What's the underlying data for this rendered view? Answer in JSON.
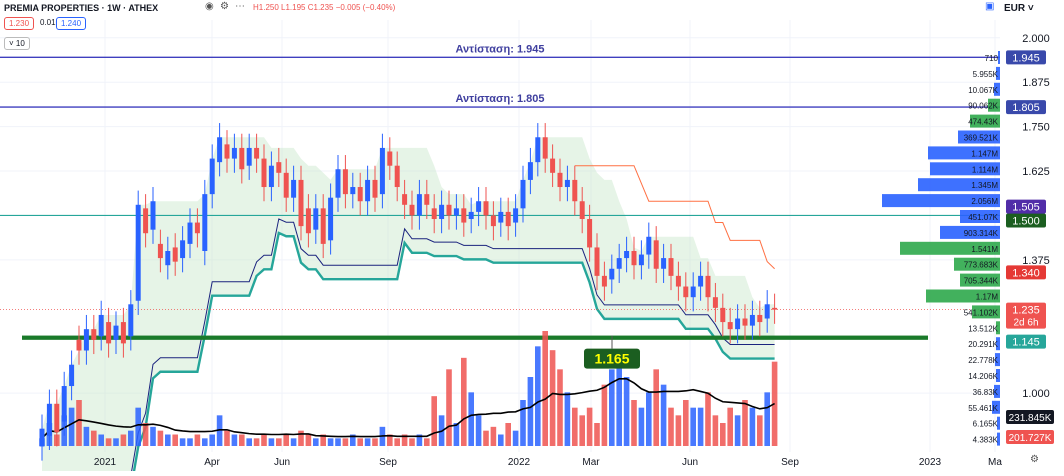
{
  "header": {
    "symbol": "PREMIA PROPERTIES · 1W · ATHEX",
    "ohlc": "H1.250 L1.195 C1.235 −0.005 (−0.40%)",
    "bid": "1.230",
    "spread": "0.010",
    "ask": "1.240",
    "indicator_param": "10",
    "currency": "EUR"
  },
  "colors": {
    "up": "#2962ff",
    "down": "#ef5350",
    "resistance": "#3f3fbf",
    "support_green": "#1a7a2a",
    "level_green": "#26a69a",
    "teal_band": "#26a69a",
    "orange_line": "#ff7043",
    "vp_green": "#2ea94b",
    "vp_blue": "#2962ff",
    "avg_line": "#000000"
  },
  "chart_data": {
    "type": "candlestick",
    "symbol": "PREMIA PROPERTIES",
    "interval": "1W",
    "ylim": [
      0.84,
      2.05
    ],
    "y_ticks": [
      2.0,
      1.875,
      1.75,
      1.625,
      1.375,
      1.0
    ],
    "x_ticks": [
      "2021",
      "Apr",
      "Jun",
      "Sep",
      "2022",
      "Mar",
      "Jun",
      "Sep",
      "2023",
      "Ma"
    ],
    "annotations": [
      {
        "label": "Αντίσταση: 1.945",
        "y": 1.945
      },
      {
        "label": "Αντίσταση: 1.805",
        "y": 1.805
      },
      {
        "label": "1.165",
        "y": 1.165
      }
    ],
    "levels": [
      {
        "value": 1.945,
        "label": "1.945"
      },
      {
        "value": 1.805,
        "label": "1.805"
      },
      {
        "value": 1.5,
        "label": "1.500"
      },
      {
        "value": 1.505,
        "label": "1.505"
      },
      {
        "value": 1.34,
        "label": "1.340"
      },
      {
        "value": 1.235,
        "label": "1.235",
        "sub": "2d 6h"
      },
      {
        "value": 1.145,
        "label": "1.145"
      }
    ],
    "support_zone": [
      1.15,
      1.162
    ],
    "last_volume": "231.845K",
    "avg_volume": "201.727K",
    "volume_profile": [
      "710",
      "5.955K",
      "10.067K",
      "90.062K",
      "474.43K",
      "369.521K",
      "1.147M",
      "1.114M",
      "1.345M",
      "2.056M",
      "451.07K",
      "903.314K",
      "1.541M",
      "773.683K",
      "705.344K",
      "1.17M",
      "541.102K",
      "13.512K",
      "20.291K",
      "22.778K",
      "14.206K",
      "36.83K",
      "55.461K",
      "6.165K",
      "4.383K"
    ],
    "candles": [
      [
        0.85,
        0.9
      ],
      [
        0.88,
        0.97
      ],
      [
        0.97,
        0.89
      ],
      [
        0.92,
        1.02
      ],
      [
        1.02,
        1.08
      ],
      [
        1.15,
        1.12
      ],
      [
        1.12,
        1.18
      ],
      [
        1.18,
        1.15
      ],
      [
        1.16,
        1.22
      ],
      [
        1.2,
        1.14
      ],
      [
        1.15,
        1.19
      ],
      [
        1.2,
        1.14
      ],
      [
        1.16,
        1.25
      ],
      [
        1.26,
        1.53
      ],
      [
        1.52,
        1.45
      ],
      [
        1.46,
        1.54
      ],
      [
        1.42,
        1.38
      ],
      [
        1.36,
        1.4
      ],
      [
        1.41,
        1.37
      ],
      [
        1.38,
        1.43
      ],
      [
        1.42,
        1.48
      ],
      [
        1.48,
        1.45
      ],
      [
        1.4,
        1.56
      ],
      [
        1.56,
        1.66
      ],
      [
        1.65,
        1.72
      ],
      [
        1.7,
        1.66
      ],
      [
        1.66,
        1.69
      ],
      [
        1.69,
        1.63
      ],
      [
        1.64,
        1.69
      ],
      [
        1.69,
        1.66
      ],
      [
        1.66,
        1.58
      ],
      [
        1.58,
        1.64
      ],
      [
        1.65,
        1.62
      ],
      [
        1.62,
        1.55
      ],
      [
        1.55,
        1.6
      ],
      [
        1.6,
        1.47
      ],
      [
        1.52,
        1.45
      ],
      [
        1.46,
        1.52
      ],
      [
        1.52,
        1.42
      ],
      [
        1.43,
        1.55
      ],
      [
        1.55,
        1.63
      ],
      [
        1.63,
        1.56
      ],
      [
        1.56,
        1.58
      ],
      [
        1.58,
        1.54
      ],
      [
        1.54,
        1.6
      ],
      [
        1.6,
        1.55
      ],
      [
        1.56,
        1.69
      ],
      [
        1.68,
        1.64
      ],
      [
        1.64,
        1.58
      ],
      [
        1.56,
        1.53
      ],
      [
        1.53,
        1.5
      ],
      [
        1.5,
        1.56
      ],
      [
        1.56,
        1.53
      ],
      [
        1.52,
        1.49
      ],
      [
        1.49,
        1.53
      ],
      [
        1.53,
        1.5
      ],
      [
        1.5,
        1.52
      ],
      [
        1.52,
        1.48
      ],
      [
        1.49,
        1.51
      ],
      [
        1.51,
        1.54
      ],
      [
        1.54,
        1.5
      ],
      [
        1.5,
        1.47
      ],
      [
        1.48,
        1.51
      ],
      [
        1.51,
        1.47
      ],
      [
        1.48,
        1.52
      ],
      [
        1.52,
        1.6
      ],
      [
        1.6,
        1.65
      ],
      [
        1.65,
        1.72
      ],
      [
        1.72,
        1.66
      ],
      [
        1.66,
        1.62
      ],
      [
        1.62,
        1.58
      ],
      [
        1.58,
        1.6
      ],
      [
        1.6,
        1.54
      ],
      [
        1.54,
        1.49
      ],
      [
        1.49,
        1.41
      ],
      [
        1.41,
        1.33
      ],
      [
        1.33,
        1.3
      ],
      [
        1.32,
        1.35
      ],
      [
        1.35,
        1.38
      ],
      [
        1.38,
        1.4
      ],
      [
        1.4,
        1.36
      ],
      [
        1.36,
        1.39
      ],
      [
        1.39,
        1.44
      ],
      [
        1.43,
        1.35
      ],
      [
        1.35,
        1.38
      ],
      [
        1.38,
        1.33
      ],
      [
        1.33,
        1.3
      ],
      [
        1.3,
        1.27
      ],
      [
        1.27,
        1.3
      ],
      [
        1.3,
        1.33
      ],
      [
        1.33,
        1.27
      ],
      [
        1.27,
        1.24
      ],
      [
        1.24,
        1.2
      ],
      [
        1.2,
        1.18
      ],
      [
        1.18,
        1.21
      ],
      [
        1.21,
        1.19
      ],
      [
        1.19,
        1.22
      ],
      [
        1.22,
        1.2
      ],
      [
        1.21,
        1.25
      ],
      [
        1.24,
        1.235
      ]
    ],
    "volumes": [
      2,
      6,
      3,
      8,
      10,
      12,
      5,
      4,
      3,
      2,
      2,
      3,
      4,
      10,
      6,
      5,
      4,
      3,
      3,
      2,
      2,
      3,
      2,
      3,
      8,
      4,
      3,
      3,
      2,
      2,
      3,
      2,
      2,
      3,
      2,
      4,
      3,
      2,
      3,
      2,
      2,
      2,
      3,
      2,
      2,
      2,
      5,
      3,
      2,
      3,
      2,
      3,
      2,
      13,
      8,
      20,
      6,
      23,
      14,
      8,
      4,
      5,
      3,
      6,
      4,
      12,
      18,
      26,
      30,
      25,
      20,
      14,
      10,
      8,
      10,
      6,
      16,
      20,
      25,
      18,
      12,
      10,
      14,
      20,
      16,
      10,
      8,
      12,
      10,
      10,
      14,
      8,
      6,
      10,
      8,
      12,
      10,
      8,
      14,
      22
    ]
  }
}
